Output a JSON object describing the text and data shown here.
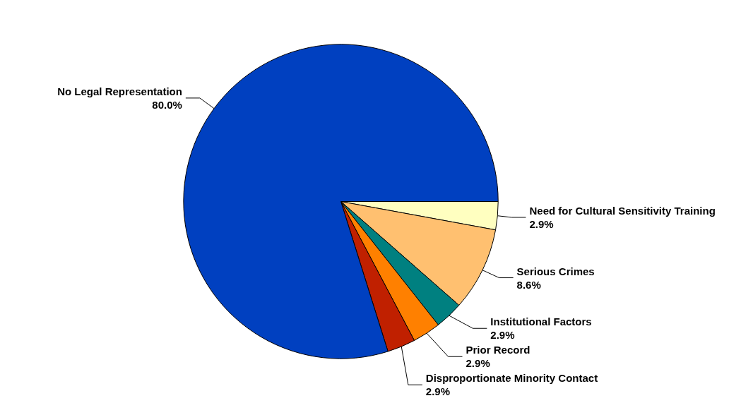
{
  "chart_data": {
    "type": "pie",
    "categories": [
      "Need for Cultural Sensitivity Training",
      "Serious Crimes",
      "Institutional Factors",
      "Prior Record",
      "Disproportionate Minority Contact",
      "No Legal Representation"
    ],
    "values": [
      2.9,
      8.6,
      2.9,
      2.9,
      2.9,
      80.0
    ],
    "value_labels": [
      "2.9%",
      "8.6%",
      "2.9%",
      "2.9%",
      "2.9%",
      "80.0%"
    ],
    "colors": [
      "#ffffc0",
      "#ffc070",
      "#008080",
      "#ff8000",
      "#c02000",
      "#0040c0"
    ]
  }
}
